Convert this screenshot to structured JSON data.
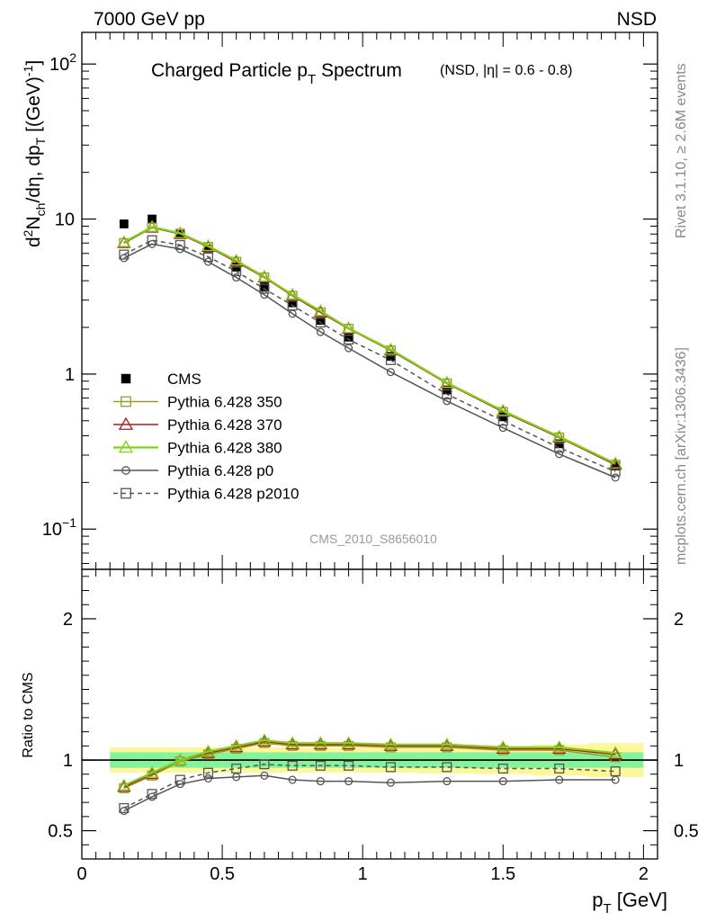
{
  "header": {
    "left_label": "7000 GeV pp",
    "right_label": "NSD",
    "side_label_top": "Rivet 3.1.10, ≥ 2.6M events",
    "side_label_bottom": "mcplots.cern.ch [arXiv:1306.3436]"
  },
  "chart_data": [
    {
      "type": "line",
      "panel": "main",
      "title": "Charged Particle p",
      "title_sub": "T",
      "title_tail": " Spectrum",
      "subtitle": "(NSD, |η| = 0.6 - 0.8)",
      "analysis_tag": "CMS_2010_S8656010",
      "ylabel": "d²N_ch/dη, dp_T [(GeV)⁻¹]",
      "yscale": "log",
      "ylim": [
        0.055,
        160
      ],
      "xlim": [
        0,
        2.05
      ],
      "yticks": [
        {
          "v": 0.1,
          "base": "10",
          "exp": "−1"
        },
        {
          "v": 1,
          "base": "1",
          "exp": ""
        },
        {
          "v": 10,
          "base": "10",
          "exp": ""
        },
        {
          "v": 100,
          "base": "10",
          "exp": "2"
        }
      ],
      "legend": {
        "position": "lower-left"
      },
      "x": [
        0.15,
        0.25,
        0.35,
        0.45,
        0.55,
        0.65,
        0.75,
        0.85,
        0.95,
        1.1,
        1.3,
        1.5,
        1.7,
        1.9
      ],
      "series": [
        {
          "name": "CMS",
          "color": "#000000",
          "marker": "filled-square",
          "style": "points",
          "values": [
            9.3,
            10.0,
            8.1,
            6.4,
            4.9,
            3.65,
            2.88,
            2.22,
            1.73,
            1.3,
            0.79,
            0.53,
            0.355,
            0.255
          ]
        },
        {
          "name": "Pythia 6.428 350",
          "color": "#9a9a2a",
          "marker": "open-square",
          "style": "solid",
          "values": [
            7.0,
            8.8,
            8.0,
            6.6,
            5.3,
            4.2,
            3.2,
            2.5,
            1.96,
            1.42,
            0.87,
            0.57,
            0.39,
            0.26
          ]
        },
        {
          "name": "Pythia 6.428 370",
          "color": "#aa1e1e",
          "marker": "open-triangle",
          "style": "solid",
          "values": [
            7.0,
            8.8,
            8.0,
            6.6,
            5.3,
            4.2,
            3.2,
            2.5,
            1.96,
            1.42,
            0.87,
            0.57,
            0.39,
            0.26
          ]
        },
        {
          "name": "Pythia 6.428 380",
          "color": "#7fd41a",
          "marker": "open-triangle",
          "style": "solid",
          "values": [
            7.1,
            8.9,
            8.1,
            6.7,
            5.4,
            4.25,
            3.25,
            2.55,
            1.98,
            1.44,
            0.88,
            0.58,
            0.395,
            0.265
          ]
        },
        {
          "name": "Pythia 6.428 p0",
          "color": "#555555",
          "marker": "open-circle",
          "style": "solid",
          "values": [
            5.6,
            6.9,
            6.4,
            5.3,
            4.2,
            3.25,
            2.45,
            1.87,
            1.47,
            1.03,
            0.67,
            0.45,
            0.305,
            0.215
          ]
        },
        {
          "name": "Pythia 6.428 p2010",
          "color": "#555555",
          "marker": "open-square",
          "style": "dashed",
          "values": [
            5.9,
            7.3,
            6.8,
            5.7,
            4.6,
            3.55,
            2.77,
            2.15,
            1.67,
            1.23,
            0.74,
            0.5,
            0.335,
            0.235
          ]
        }
      ]
    },
    {
      "type": "line",
      "panel": "ratio",
      "ylabel": "Ratio to CMS",
      "xlabel": "p_T [GeV]",
      "ylim": [
        0.3,
        2.35
      ],
      "xlim": [
        0,
        2.05
      ],
      "yticks": [
        0.5,
        1,
        2
      ],
      "xticks": [
        0,
        0.5,
        1,
        1.5,
        2
      ],
      "bands": {
        "x_edges": [
          0.1,
          0.2,
          0.3,
          0.4,
          0.5,
          0.6,
          0.7,
          0.8,
          0.9,
          1.0,
          1.2,
          1.4,
          1.6,
          1.8,
          2.0
        ],
        "stat_halfwidth": [
          0.055,
          0.055,
          0.055,
          0.055,
          0.055,
          0.055,
          0.055,
          0.055,
          0.055,
          0.055,
          0.055,
          0.055,
          0.055,
          0.055
        ],
        "syst_halfwidth": [
          0.09,
          0.09,
          0.09,
          0.09,
          0.09,
          0.09,
          0.09,
          0.09,
          0.09,
          0.09,
          0.095,
          0.1,
          0.11,
          0.12
        ]
      },
      "x": [
        0.15,
        0.25,
        0.35,
        0.45,
        0.55,
        0.65,
        0.75,
        0.85,
        0.95,
        1.1,
        1.3,
        1.5,
        1.7,
        1.9
      ],
      "series": [
        {
          "name": "Pythia 6.428 350",
          "color": "#9a9a2a",
          "marker": "open-square",
          "style": "solid",
          "values": [
            0.8,
            0.89,
            0.99,
            1.04,
            1.08,
            1.12,
            1.1,
            1.1,
            1.1,
            1.09,
            1.09,
            1.07,
            1.07,
            1.02
          ]
        },
        {
          "name": "Pythia 6.428 370",
          "color": "#aa1e1e",
          "marker": "open-triangle",
          "style": "solid",
          "values": [
            0.81,
            0.9,
            1.0,
            1.05,
            1.09,
            1.13,
            1.11,
            1.11,
            1.11,
            1.1,
            1.1,
            1.08,
            1.08,
            1.04
          ]
        },
        {
          "name": "Pythia 6.428 380",
          "color": "#7fd41a",
          "marker": "open-triangle",
          "style": "solid",
          "values": [
            0.82,
            0.91,
            1.0,
            1.06,
            1.1,
            1.14,
            1.12,
            1.12,
            1.12,
            1.11,
            1.11,
            1.09,
            1.09,
            1.05
          ]
        },
        {
          "name": "Pythia 6.428 p0",
          "color": "#555555",
          "marker": "open-circle",
          "style": "solid",
          "values": [
            0.64,
            0.74,
            0.83,
            0.87,
            0.88,
            0.89,
            0.86,
            0.85,
            0.85,
            0.84,
            0.85,
            0.85,
            0.86,
            0.86
          ]
        },
        {
          "name": "Pythia 6.428 p2010",
          "color": "#555555",
          "marker": "open-square",
          "style": "dashed",
          "values": [
            0.66,
            0.76,
            0.86,
            0.91,
            0.94,
            0.97,
            0.96,
            0.96,
            0.96,
            0.95,
            0.95,
            0.94,
            0.94,
            0.92
          ]
        }
      ]
    }
  ]
}
